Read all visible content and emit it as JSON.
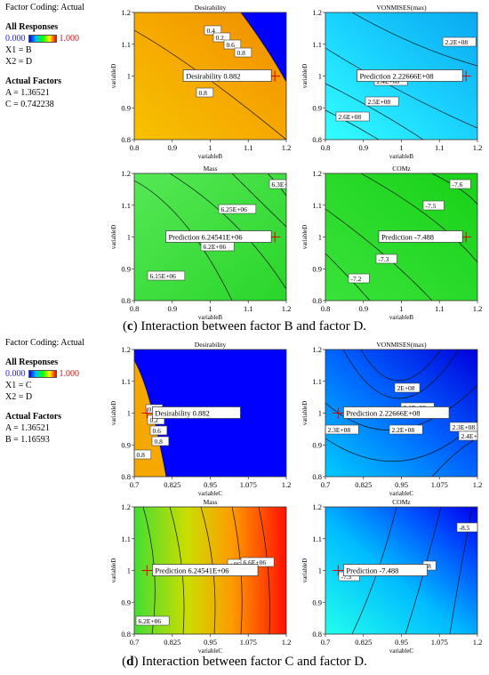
{
  "panel_c": {
    "factor_coding": "Factor Coding: Actual",
    "all_responses": "All Responses",
    "scale_low": "0.000",
    "scale_high": "1.000",
    "x1": "X1 = B",
    "x2": "X2 = D",
    "actual_factors": "Actual Factors",
    "factor_lines": [
      "A = 1.36521",
      "C = 0.742238"
    ],
    "caption_letter": "c",
    "caption_text": " Interaction between factor B and factor D."
  },
  "panel_d": {
    "factor_coding": "Factor Coding: Actual",
    "all_responses": "All Responses",
    "scale_low": "0.000",
    "scale_high": "1.000",
    "x1": "X1 = C",
    "x2": "X2 = D",
    "actual_factors": "Actual Factors",
    "factor_lines": [
      "A = 1.36521",
      "B = 1.16593"
    ],
    "caption_letter": "d",
    "caption_text": " Interaction between factor C and factor D."
  },
  "colors": {
    "blue": "#0000ff",
    "orange": "#ffa500",
    "red": "#ff0000",
    "green": "#33dd33",
    "cyan": "#00ccff"
  },
  "chart_data": [
    {
      "type": "heatmap",
      "id": "c-desirability",
      "title": "Desirability",
      "xlabel": "variableB",
      "ylabel": "variableD",
      "xlim": [
        0.8,
        1.2
      ],
      "ylim": [
        0.8,
        1.2
      ],
      "xticks": [
        "0.8",
        "0.9",
        "1",
        "1.1",
        "1.2"
      ],
      "yticks": [
        "0.8",
        "0.9",
        "1",
        "1.1",
        "1.2"
      ],
      "contour_labels": [
        "0.8",
        "0.4",
        "0.2",
        "0.6",
        "0.8"
      ],
      "prediction_label": "Desirability",
      "prediction_value": "0.882",
      "prediction_point": [
        1.17,
        1.0
      ]
    },
    {
      "type": "heatmap",
      "id": "c-vonmises",
      "title": "VONMISES(max)",
      "xlabel": "variableB",
      "ylabel": "variableD",
      "xlim": [
        0.8,
        1.2
      ],
      "ylim": [
        0.8,
        1.2
      ],
      "xticks": [
        "0.8",
        "0.9",
        "1",
        "1.1",
        "1.2"
      ],
      "yticks": [
        "0.8",
        "0.9",
        "1",
        "1.1",
        "1.2"
      ],
      "contour_labels": [
        "2.2E+08",
        "2.4E+08",
        "2.5E+08",
        "2.6E+08"
      ],
      "prediction_label": "Prediction",
      "prediction_value": "2.22666E+08",
      "prediction_point": [
        1.17,
        1.0
      ]
    },
    {
      "type": "heatmap",
      "id": "c-mass",
      "title": "Mass",
      "xlabel": "variableB",
      "ylabel": "variableD",
      "xlim": [
        0.8,
        1.2
      ],
      "ylim": [
        0.8,
        1.2
      ],
      "xticks": [
        "0.8",
        "0.9",
        "1",
        "1.1",
        "1.2"
      ],
      "yticks": [
        "0.8",
        "0.9",
        "1",
        "1.1",
        "1.2"
      ],
      "contour_labels": [
        "6.3E+06",
        "6.25E+06",
        "6.2E+06",
        "6.15E+06"
      ],
      "prediction_label": "Prediction",
      "prediction_value": "6.24541E+06",
      "prediction_point": [
        1.17,
        1.0
      ]
    },
    {
      "type": "heatmap",
      "id": "c-comz",
      "title": "COMz",
      "xlabel": "variableB",
      "ylabel": "variableD",
      "xlim": [
        0.8,
        1.2
      ],
      "ylim": [
        0.8,
        1.2
      ],
      "xticks": [
        "0.8",
        "0.9",
        "1",
        "1.1",
        "1.2"
      ],
      "yticks": [
        "0.8",
        "0.9",
        "1",
        "1.1",
        "1.2"
      ],
      "contour_labels": [
        "-7.6",
        "-7.5",
        "-7.3",
        "-7.2"
      ],
      "prediction_label": "Prediction",
      "prediction_value": "-7.488",
      "prediction_point": [
        1.17,
        1.0
      ]
    },
    {
      "type": "heatmap",
      "id": "d-desirability",
      "title": "Desirability",
      "xlabel": "variableC",
      "ylabel": "variableD",
      "xlim": [
        0.7,
        1.2
      ],
      "ylim": [
        0.8,
        1.2
      ],
      "xticks": [
        "0.7",
        "0.825",
        "0.95",
        "1.075",
        "1.2"
      ],
      "yticks": [
        "0.8",
        "0.9",
        "1",
        "1.1",
        "1.2"
      ],
      "contour_labels": [
        "0.4",
        "0.2",
        "0.6",
        "0.8",
        "0.8"
      ],
      "prediction_label": "Desirability",
      "prediction_value": "0.882",
      "prediction_point": [
        0.742,
        1.0
      ]
    },
    {
      "type": "heatmap",
      "id": "d-vonmises",
      "title": "VONMISES(max)",
      "xlabel": "variableC",
      "ylabel": "variableD",
      "xlim": [
        0.7,
        1.2
      ],
      "ylim": [
        0.8,
        1.2
      ],
      "xticks": [
        "0.7",
        "0.825",
        "0.95",
        "1.075",
        "1.2"
      ],
      "yticks": [
        "0.8",
        "0.9",
        "1",
        "1.1",
        "1.2"
      ],
      "contour_labels": [
        "2E+08",
        "2.1E+08",
        "2.2E+08",
        "2.3E+08",
        "2.3E+08",
        "2.4E+08"
      ],
      "prediction_label": "Prediction",
      "prediction_value": "2.22666E+08",
      "prediction_point": [
        0.742,
        1.0
      ]
    },
    {
      "type": "heatmap",
      "id": "d-mass",
      "title": "Mass",
      "xlabel": "variableC",
      "ylabel": "variableD",
      "xlim": [
        0.7,
        1.2
      ],
      "ylim": [
        0.8,
        1.2
      ],
      "xticks": [
        "0.7",
        "0.825",
        "0.95",
        "1.075",
        "1.2"
      ],
      "yticks": [
        "0.8",
        "0.9",
        "1",
        "1.1",
        "1.2"
      ],
      "contour_labels": [
        "6.2E+06",
        "+06",
        "6.6E+06"
      ],
      "prediction_label": "Prediction",
      "prediction_value": "6.24541E+06",
      "prediction_point": [
        0.742,
        1.0
      ]
    },
    {
      "type": "heatmap",
      "id": "d-comz",
      "title": "COMz",
      "xlabel": "variableC",
      "ylabel": "variableD",
      "xlim": [
        0.7,
        1.2
      ],
      "ylim": [
        0.8,
        1.2
      ],
      "xticks": [
        "0.7",
        "0.825",
        "0.95",
        "1.075",
        "1.2"
      ],
      "yticks": [
        "0.8",
        "0.9",
        "1",
        "1.1",
        "1.2"
      ],
      "contour_labels": [
        "-8.5",
        "-8",
        "-7.5"
      ],
      "prediction_label": "Prediction",
      "prediction_value": "-7.488",
      "prediction_point": [
        0.742,
        1.0
      ]
    }
  ]
}
